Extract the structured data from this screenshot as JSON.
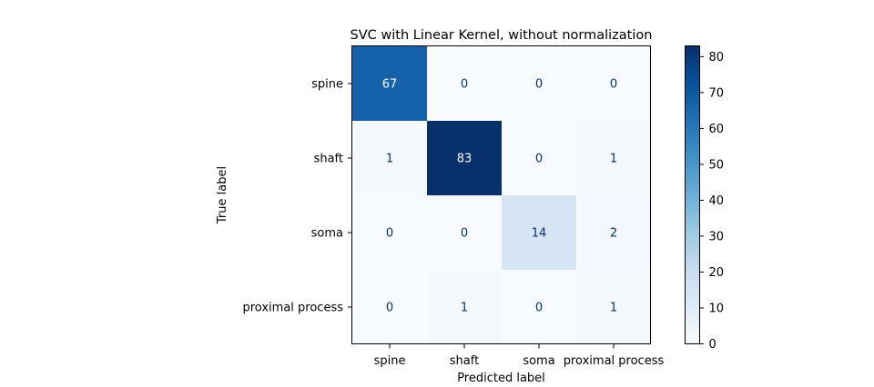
{
  "chart_data": {
    "type": "heatmap",
    "title": "SVC with Linear Kernel, without normalization",
    "xlabel": "Predicted label",
    "ylabel": "True label",
    "x_categories": [
      "spine",
      "shaft",
      "soma",
      "proximal process"
    ],
    "y_categories": [
      "spine",
      "shaft",
      "soma",
      "proximal process"
    ],
    "values": [
      [
        67,
        0,
        0,
        0
      ],
      [
        1,
        83,
        0,
        1
      ],
      [
        0,
        0,
        14,
        2
      ],
      [
        0,
        1,
        0,
        1
      ]
    ],
    "colormap": "Blues",
    "vmin": 0,
    "vmax": 83,
    "colorbar_ticks": [
      0,
      10,
      20,
      30,
      40,
      50,
      60,
      70,
      80
    ],
    "grid": false
  }
}
